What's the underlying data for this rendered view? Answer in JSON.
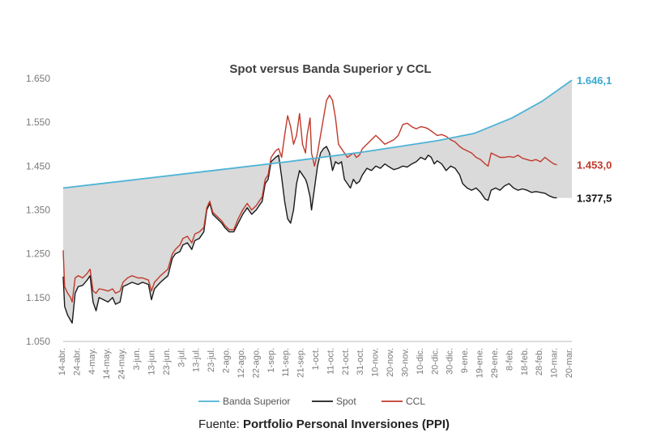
{
  "chart_data": {
    "type": "line",
    "title": "Spot versus Banda Superior y CCL",
    "ylim": [
      1050,
      1650
    ],
    "yticks": [
      "1.650",
      "1.550",
      "1.450",
      "1.350",
      "1.250",
      "1.150",
      "1.050"
    ],
    "ytick_values": [
      1650,
      1550,
      1450,
      1350,
      1250,
      1150,
      1050
    ],
    "x_range": [
      0,
      340
    ],
    "xtick_labels": [
      "14-abr.",
      "24-abr.",
      "4-may.",
      "14-may.",
      "24-may.",
      "3-jun.",
      "13-jun.",
      "23-jun.",
      "3-jul.",
      "13-jul.",
      "23-jul.",
      "2-ago.",
      "12-ago.",
      "22-ago.",
      "1-sep.",
      "11-sep.",
      "21-sep.",
      "1-oct.",
      "11-oct.",
      "21-oct.",
      "31-oct.",
      "10-nov.",
      "20-nov.",
      "30-nov.",
      "10-dic.",
      "20-dic.",
      "30-dic.",
      "9-ene.",
      "19-ene.",
      "29-ene.",
      "8-feb.",
      "18-feb.",
      "28-feb.",
      "10-mar.",
      "20-mar."
    ],
    "series": [
      {
        "name": "Banda Superior",
        "color": "#4db3d6",
        "end_label": "1.646,1",
        "points": [
          [
            0,
            1400
          ],
          [
            50,
            1420
          ],
          [
            100,
            1440
          ],
          [
            150,
            1460
          ],
          [
            200,
            1482
          ],
          [
            250,
            1508
          ],
          [
            275,
            1525
          ],
          [
            300,
            1560
          ],
          [
            320,
            1598
          ],
          [
            340,
            1646.1
          ]
        ]
      },
      {
        "name": "Spot",
        "color": "#1a1a1a",
        "end_label": "1.377,5",
        "points": [
          [
            0,
            1198
          ],
          [
            1,
            1130
          ],
          [
            3,
            1110
          ],
          [
            5,
            1098
          ],
          [
            6,
            1092
          ],
          [
            8,
            1160
          ],
          [
            10,
            1175
          ],
          [
            13,
            1178
          ],
          [
            16,
            1190
          ],
          [
            18,
            1200
          ],
          [
            20,
            1140
          ],
          [
            22,
            1120
          ],
          [
            24,
            1150
          ],
          [
            27,
            1145
          ],
          [
            30,
            1140
          ],
          [
            33,
            1150
          ],
          [
            35,
            1135
          ],
          [
            38,
            1140
          ],
          [
            40,
            1175
          ],
          [
            43,
            1180
          ],
          [
            46,
            1185
          ],
          [
            50,
            1180
          ],
          [
            53,
            1185
          ],
          [
            57,
            1180
          ],
          [
            59,
            1145
          ],
          [
            61,
            1170
          ],
          [
            65,
            1185
          ],
          [
            70,
            1200
          ],
          [
            73,
            1240
          ],
          [
            75,
            1250
          ],
          [
            78,
            1255
          ],
          [
            80,
            1270
          ],
          [
            83,
            1275
          ],
          [
            86,
            1260
          ],
          [
            88,
            1280
          ],
          [
            91,
            1285
          ],
          [
            94,
            1300
          ],
          [
            96,
            1350
          ],
          [
            98,
            1365
          ],
          [
            100,
            1340
          ],
          [
            103,
            1330
          ],
          [
            106,
            1320
          ],
          [
            108,
            1310
          ],
          [
            111,
            1300
          ],
          [
            114,
            1300
          ],
          [
            117,
            1320
          ],
          [
            120,
            1340
          ],
          [
            123,
            1355
          ],
          [
            126,
            1340
          ],
          [
            129,
            1350
          ],
          [
            133,
            1370
          ],
          [
            135,
            1410
          ],
          [
            137,
            1420
          ],
          [
            139,
            1460
          ],
          [
            142,
            1470
          ],
          [
            144,
            1475
          ],
          [
            146,
            1425
          ],
          [
            148,
            1370
          ],
          [
            150,
            1330
          ],
          [
            152,
            1320
          ],
          [
            154,
            1350
          ],
          [
            156,
            1410
          ],
          [
            158,
            1440
          ],
          [
            160,
            1430
          ],
          [
            162,
            1420
          ],
          [
            163,
            1410
          ],
          [
            165,
            1380
          ],
          [
            166,
            1350
          ],
          [
            168,
            1400
          ],
          [
            170,
            1450
          ],
          [
            172,
            1480
          ],
          [
            174,
            1490
          ],
          [
            176,
            1495
          ],
          [
            178,
            1480
          ],
          [
            180,
            1440
          ],
          [
            182,
            1460
          ],
          [
            184,
            1455
          ],
          [
            186,
            1460
          ],
          [
            188,
            1420
          ],
          [
            190,
            1410
          ],
          [
            192,
            1400
          ],
          [
            194,
            1420
          ],
          [
            196,
            1410
          ],
          [
            198,
            1415
          ],
          [
            200,
            1430
          ],
          [
            203,
            1445
          ],
          [
            206,
            1440
          ],
          [
            209,
            1450
          ],
          [
            212,
            1445
          ],
          [
            215,
            1455
          ],
          [
            218,
            1448
          ],
          [
            221,
            1442
          ],
          [
            224,
            1445
          ],
          [
            227,
            1450
          ],
          [
            230,
            1448
          ],
          [
            233,
            1455
          ],
          [
            236,
            1460
          ],
          [
            239,
            1470
          ],
          [
            242,
            1465
          ],
          [
            244,
            1475
          ],
          [
            246,
            1470
          ],
          [
            248,
            1455
          ],
          [
            250,
            1462
          ],
          [
            253,
            1455
          ],
          [
            256,
            1440
          ],
          [
            259,
            1450
          ],
          [
            262,
            1445
          ],
          [
            265,
            1430
          ],
          [
            267,
            1410
          ],
          [
            270,
            1400
          ],
          [
            273,
            1395
          ],
          [
            276,
            1400
          ],
          [
            279,
            1390
          ],
          [
            282,
            1375
          ],
          [
            284,
            1372
          ],
          [
            286,
            1395
          ],
          [
            289,
            1400
          ],
          [
            292,
            1395
          ],
          [
            295,
            1405
          ],
          [
            298,
            1410
          ],
          [
            301,
            1400
          ],
          [
            304,
            1395
          ],
          [
            307,
            1398
          ],
          [
            310,
            1395
          ],
          [
            313,
            1390
          ],
          [
            316,
            1392
          ],
          [
            319,
            1390
          ],
          [
            322,
            1388
          ],
          [
            325,
            1382
          ],
          [
            328,
            1378
          ],
          [
            330,
            1377.5
          ]
        ]
      },
      {
        "name": "CCL",
        "color": "#c0392b",
        "end_label": "1.453,0",
        "points": [
          [
            0,
            1258
          ],
          [
            1,
            1175
          ],
          [
            3,
            1160
          ],
          [
            5,
            1150
          ],
          [
            6,
            1140
          ],
          [
            8,
            1195
          ],
          [
            10,
            1200
          ],
          [
            13,
            1195
          ],
          [
            16,
            1205
          ],
          [
            18,
            1215
          ],
          [
            20,
            1165
          ],
          [
            22,
            1160
          ],
          [
            24,
            1170
          ],
          [
            27,
            1168
          ],
          [
            30,
            1165
          ],
          [
            33,
            1170
          ],
          [
            35,
            1160
          ],
          [
            38,
            1165
          ],
          [
            40,
            1185
          ],
          [
            43,
            1195
          ],
          [
            46,
            1200
          ],
          [
            50,
            1195
          ],
          [
            53,
            1195
          ],
          [
            57,
            1190
          ],
          [
            59,
            1165
          ],
          [
            61,
            1185
          ],
          [
            65,
            1200
          ],
          [
            70,
            1215
          ],
          [
            73,
            1250
          ],
          [
            75,
            1260
          ],
          [
            78,
            1270
          ],
          [
            80,
            1285
          ],
          [
            83,
            1290
          ],
          [
            86,
            1275
          ],
          [
            88,
            1295
          ],
          [
            91,
            1300
          ],
          [
            94,
            1310
          ],
          [
            96,
            1355
          ],
          [
            98,
            1370
          ],
          [
            100,
            1345
          ],
          [
            103,
            1335
          ],
          [
            106,
            1325
          ],
          [
            108,
            1315
          ],
          [
            111,
            1305
          ],
          [
            114,
            1305
          ],
          [
            117,
            1330
          ],
          [
            120,
            1350
          ],
          [
            123,
            1365
          ],
          [
            126,
            1350
          ],
          [
            129,
            1360
          ],
          [
            133,
            1380
          ],
          [
            135,
            1420
          ],
          [
            137,
            1430
          ],
          [
            139,
            1470
          ],
          [
            142,
            1485
          ],
          [
            144,
            1490
          ],
          [
            146,
            1470
          ],
          [
            148,
            1520
          ],
          [
            150,
            1565
          ],
          [
            152,
            1540
          ],
          [
            154,
            1500
          ],
          [
            156,
            1520
          ],
          [
            158,
            1570
          ],
          [
            160,
            1500
          ],
          [
            162,
            1480
          ],
          [
            163,
            1520
          ],
          [
            165,
            1560
          ],
          [
            166,
            1480
          ],
          [
            168,
            1450
          ],
          [
            170,
            1480
          ],
          [
            172,
            1520
          ],
          [
            174,
            1560
          ],
          [
            176,
            1600
          ],
          [
            178,
            1612
          ],
          [
            180,
            1600
          ],
          [
            182,
            1560
          ],
          [
            184,
            1500
          ],
          [
            186,
            1490
          ],
          [
            188,
            1480
          ],
          [
            190,
            1470
          ],
          [
            192,
            1475
          ],
          [
            194,
            1480
          ],
          [
            196,
            1470
          ],
          [
            198,
            1475
          ],
          [
            200,
            1490
          ],
          [
            203,
            1500
          ],
          [
            206,
            1510
          ],
          [
            209,
            1520
          ],
          [
            212,
            1510
          ],
          [
            215,
            1500
          ],
          [
            218,
            1505
          ],
          [
            221,
            1510
          ],
          [
            224,
            1520
          ],
          [
            227,
            1545
          ],
          [
            230,
            1548
          ],
          [
            233,
            1540
          ],
          [
            236,
            1535
          ],
          [
            239,
            1540
          ],
          [
            242,
            1538
          ],
          [
            244,
            1535
          ],
          [
            246,
            1530
          ],
          [
            248,
            1525
          ],
          [
            250,
            1520
          ],
          [
            253,
            1522
          ],
          [
            256,
            1518
          ],
          [
            259,
            1510
          ],
          [
            262,
            1505
          ],
          [
            265,
            1495
          ],
          [
            267,
            1490
          ],
          [
            270,
            1485
          ],
          [
            273,
            1480
          ],
          [
            276,
            1470
          ],
          [
            279,
            1465
          ],
          [
            282,
            1455
          ],
          [
            284,
            1450
          ],
          [
            286,
            1480
          ],
          [
            289,
            1475
          ],
          [
            292,
            1470
          ],
          [
            295,
            1470
          ],
          [
            298,
            1472
          ],
          [
            301,
            1470
          ],
          [
            304,
            1475
          ],
          [
            307,
            1468
          ],
          [
            310,
            1465
          ],
          [
            313,
            1462
          ],
          [
            316,
            1465
          ],
          [
            319,
            1460
          ],
          [
            322,
            1470
          ],
          [
            325,
            1462
          ],
          [
            328,
            1455
          ],
          [
            330,
            1453
          ]
        ]
      }
    ],
    "legend": [
      "Banda Superior",
      "Spot",
      "CCL"
    ],
    "legend_position": "bottom"
  },
  "source": {
    "prefix": "Fuente: ",
    "name": "Portfolio Personal Inversiones (PPI)"
  }
}
